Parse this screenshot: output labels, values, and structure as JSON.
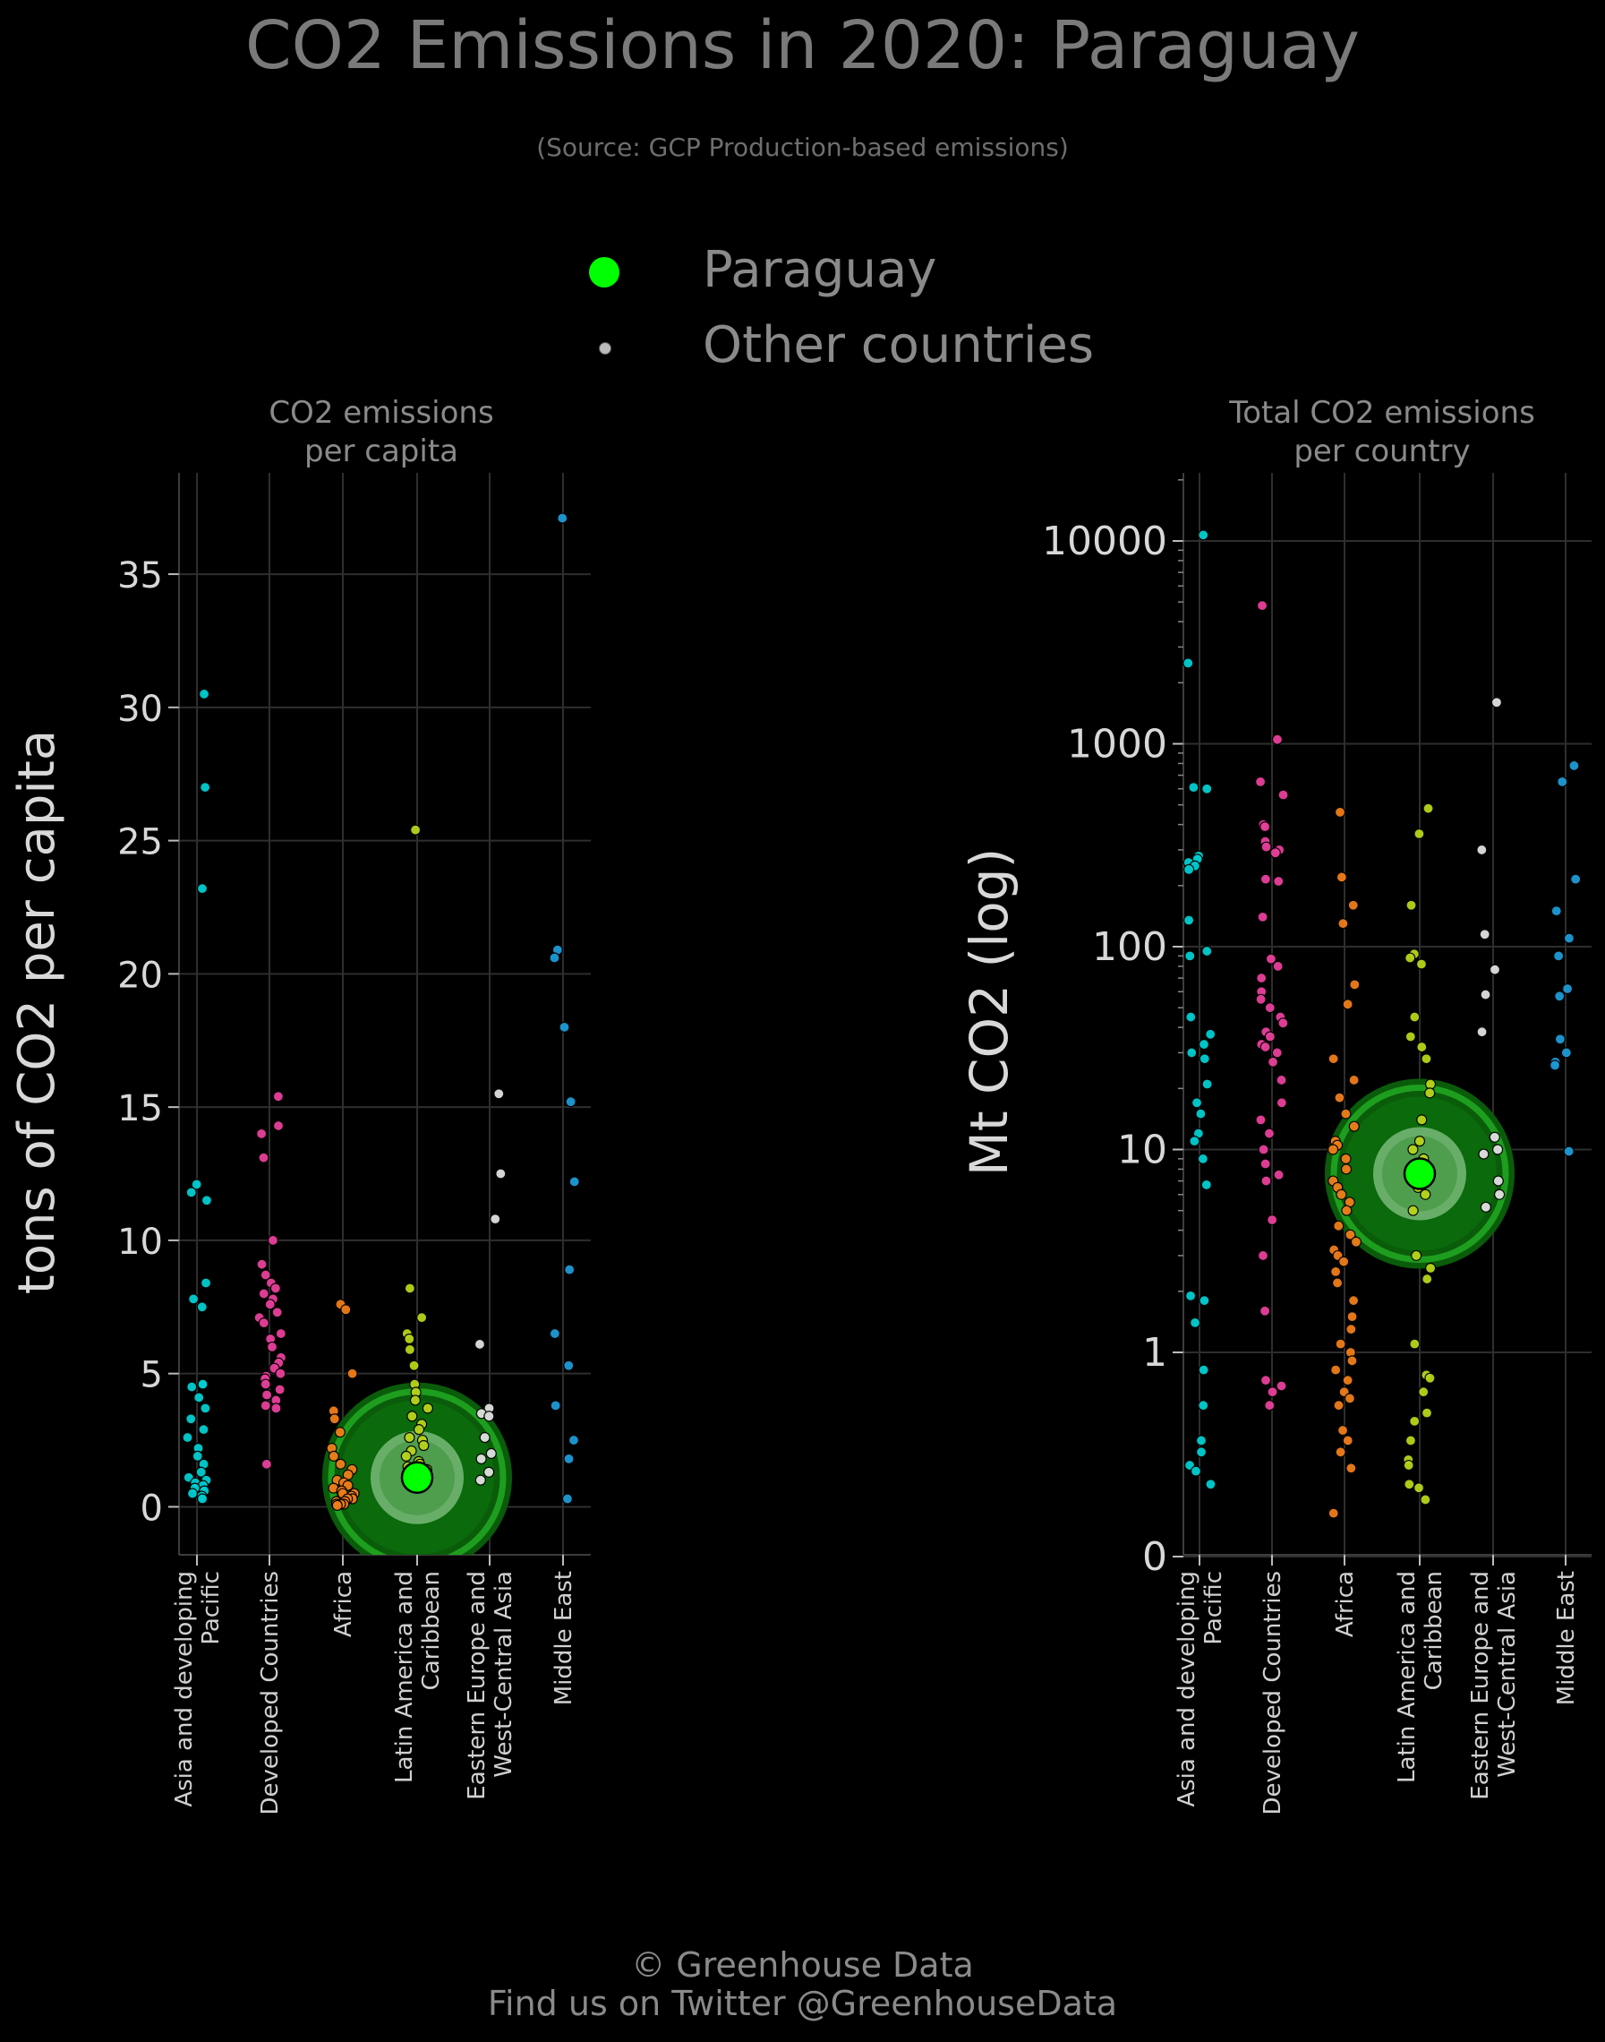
{
  "title": "CO2 Emissions in 2020: Paraguay",
  "subtitle": "(Source: GCP Production-based emissions)",
  "legend": [
    {
      "label": "Paraguay",
      "color": "#00ff00"
    },
    {
      "label": "Other countries",
      "color": "#bbbbbb"
    }
  ],
  "footer": {
    "line1": "© Greenhouse Data",
    "line2": "Find us on Twitter @GreenhouseData"
  },
  "colors": {
    "background": "#000000",
    "grid": "#2e2e2e",
    "highlight": "#00ff00",
    "regions": [
      "#00ced1",
      "#e8409a",
      "#f07d1a",
      "#b8d41a",
      "#e0e0e0",
      "#1e9ad6"
    ]
  },
  "chart_data": [
    {
      "type": "scatter",
      "title": "CO2 emissions\nper capita",
      "ylabel": "tons of CO2 per capita",
      "scale": "linear",
      "ylim": [
        -1.8,
        38.8
      ],
      "yticks": [
        0,
        5,
        10,
        15,
        20,
        25,
        30,
        35
      ],
      "grid": true,
      "categories": [
        "Asia and developing\nPacific",
        "Developed Countries",
        "Africa",
        "Latin America and\nCaribbean",
        "Eastern Europe and\nWest-Central Asia",
        "Middle East"
      ],
      "highlight": {
        "name": "Paraguay",
        "category": "Latin America and\nCaribbean",
        "value": 1.1
      },
      "series": [
        {
          "category": "Asia and developing\nPacific",
          "values": [
            30.5,
            27.0,
            23.2,
            12.1,
            11.8,
            11.5,
            8.4,
            7.8,
            7.5,
            4.6,
            4.6,
            4.5,
            4.1,
            3.7,
            3.3,
            2.9,
            2.6,
            2.2,
            1.9,
            1.6,
            1.3,
            1.1,
            1.0,
            0.9,
            0.8,
            0.7,
            0.6,
            0.5,
            0.4,
            0.3
          ]
        },
        {
          "category": "Developed Countries",
          "values": [
            15.4,
            14.3,
            14.0,
            13.1,
            10.0,
            9.1,
            8.7,
            8.4,
            8.2,
            8.0,
            7.8,
            7.6,
            7.3,
            7.1,
            6.9,
            6.5,
            6.3,
            6.0,
            5.6,
            5.4,
            5.2,
            5.0,
            4.9,
            4.8,
            4.6,
            4.4,
            4.2,
            4.0,
            3.8,
            3.7,
            1.6
          ]
        },
        {
          "category": "Africa",
          "values": [
            7.6,
            7.4,
            5.0,
            3.6,
            3.3,
            2.8,
            2.2,
            1.9,
            1.6,
            1.4,
            1.2,
            1.0,
            0.9,
            0.8,
            0.7,
            0.6,
            0.5,
            0.5,
            0.4,
            0.3,
            0.3,
            0.2,
            0.2,
            0.1,
            0.1,
            0.1,
            0.1,
            0.05
          ]
        },
        {
          "category": "Latin America and\nCaribbean",
          "values": [
            25.4,
            8.2,
            7.1,
            6.5,
            6.3,
            5.9,
            5.3,
            4.6,
            4.3,
            4.0,
            3.7,
            3.4,
            3.1,
            2.9,
            2.6,
            2.5,
            2.3,
            2.1,
            1.9,
            1.7,
            1.6,
            1.5,
            1.4,
            1.3,
            1.2,
            1.0
          ]
        },
        {
          "category": "Eastern Europe and\nWest-Central Asia",
          "values": [
            15.5,
            12.5,
            10.8,
            6.1,
            3.7,
            3.5,
            3.4,
            2.6,
            2.0,
            1.8,
            1.3,
            1.0
          ]
        },
        {
          "category": "Middle East",
          "values": [
            37.1,
            20.9,
            20.6,
            18.0,
            15.2,
            12.2,
            8.9,
            6.5,
            5.3,
            3.8,
            2.5,
            1.8,
            0.3
          ]
        }
      ]
    },
    {
      "type": "scatter",
      "title": "Total CO2 emissions\nper country",
      "ylabel": "Mt CO2 (log)",
      "scale": "log",
      "ylim": [
        0,
        20000
      ],
      "yticks": [
        0,
        1,
        10,
        100,
        1000,
        10000
      ],
      "grid": true,
      "categories": [
        "Asia and developing\nPacific",
        "Developed Countries",
        "Africa",
        "Latin America and\nCaribbean",
        "Eastern Europe and\nWest-Central Asia",
        "Middle East"
      ],
      "highlight": {
        "name": "Paraguay",
        "category": "Latin America and\nCaribbean",
        "value": 7.6
      },
      "series": [
        {
          "category": "Asia and developing\nPacific",
          "values": [
            10700,
            2500,
            610,
            600,
            280,
            270,
            260,
            250,
            240,
            135,
            95,
            90,
            45,
            37,
            33,
            30,
            28,
            21,
            17,
            15,
            12,
            11,
            9,
            6.7,
            1.9,
            1.8,
            1.4,
            0.8,
            0.5,
            0.3,
            0.25,
            0.2,
            0.18,
            0.14
          ]
        },
        {
          "category": "Developed Countries",
          "values": [
            4800,
            1050,
            650,
            560,
            400,
            390,
            330,
            310,
            300,
            290,
            215,
            210,
            140,
            87,
            80,
            70,
            60,
            55,
            50,
            45,
            42,
            38,
            36,
            33,
            32,
            30,
            27,
            22,
            17,
            14,
            12,
            10,
            8.5,
            7.5,
            7,
            4.5,
            3,
            1.6,
            0.7,
            0.65,
            0.6,
            0.5
          ]
        },
        {
          "category": "Africa",
          "values": [
            460,
            220,
            160,
            130,
            65,
            52,
            28,
            22,
            18,
            15,
            13,
            11,
            10.5,
            10,
            9,
            8,
            7,
            6.5,
            6,
            5.5,
            5,
            4.2,
            3.8,
            3.5,
            3.2,
            3,
            2.8,
            2.5,
            2.2,
            1.8,
            1.5,
            1.3,
            1.1,
            1.0,
            0.9,
            0.8,
            0.7,
            0.6,
            0.55,
            0.5,
            0.35,
            0.3,
            0.25,
            0.19,
            0.07
          ]
        },
        {
          "category": "Latin America and\nCaribbean",
          "values": [
            480,
            360,
            160,
            92,
            88,
            82,
            45,
            36,
            32,
            28,
            21,
            19,
            14,
            11,
            10,
            9,
            7.5,
            6.5,
            6,
            5,
            3,
            2.6,
            2.3,
            1.1,
            0.75,
            0.72,
            0.6,
            0.45,
            0.4,
            0.3,
            0.22,
            0.2,
            0.14,
            0.13,
            0.1
          ]
        },
        {
          "category": "Eastern Europe and\nWest-Central Asia",
          "values": [
            1600,
            300,
            115,
            77,
            58,
            38,
            11.5,
            10,
            9.5,
            7,
            6,
            5.2
          ]
        },
        {
          "category": "Middle East",
          "values": [
            780,
            650,
            215,
            150,
            110,
            90,
            62,
            57,
            35,
            30,
            27,
            26,
            9.8
          ]
        }
      ]
    }
  ]
}
